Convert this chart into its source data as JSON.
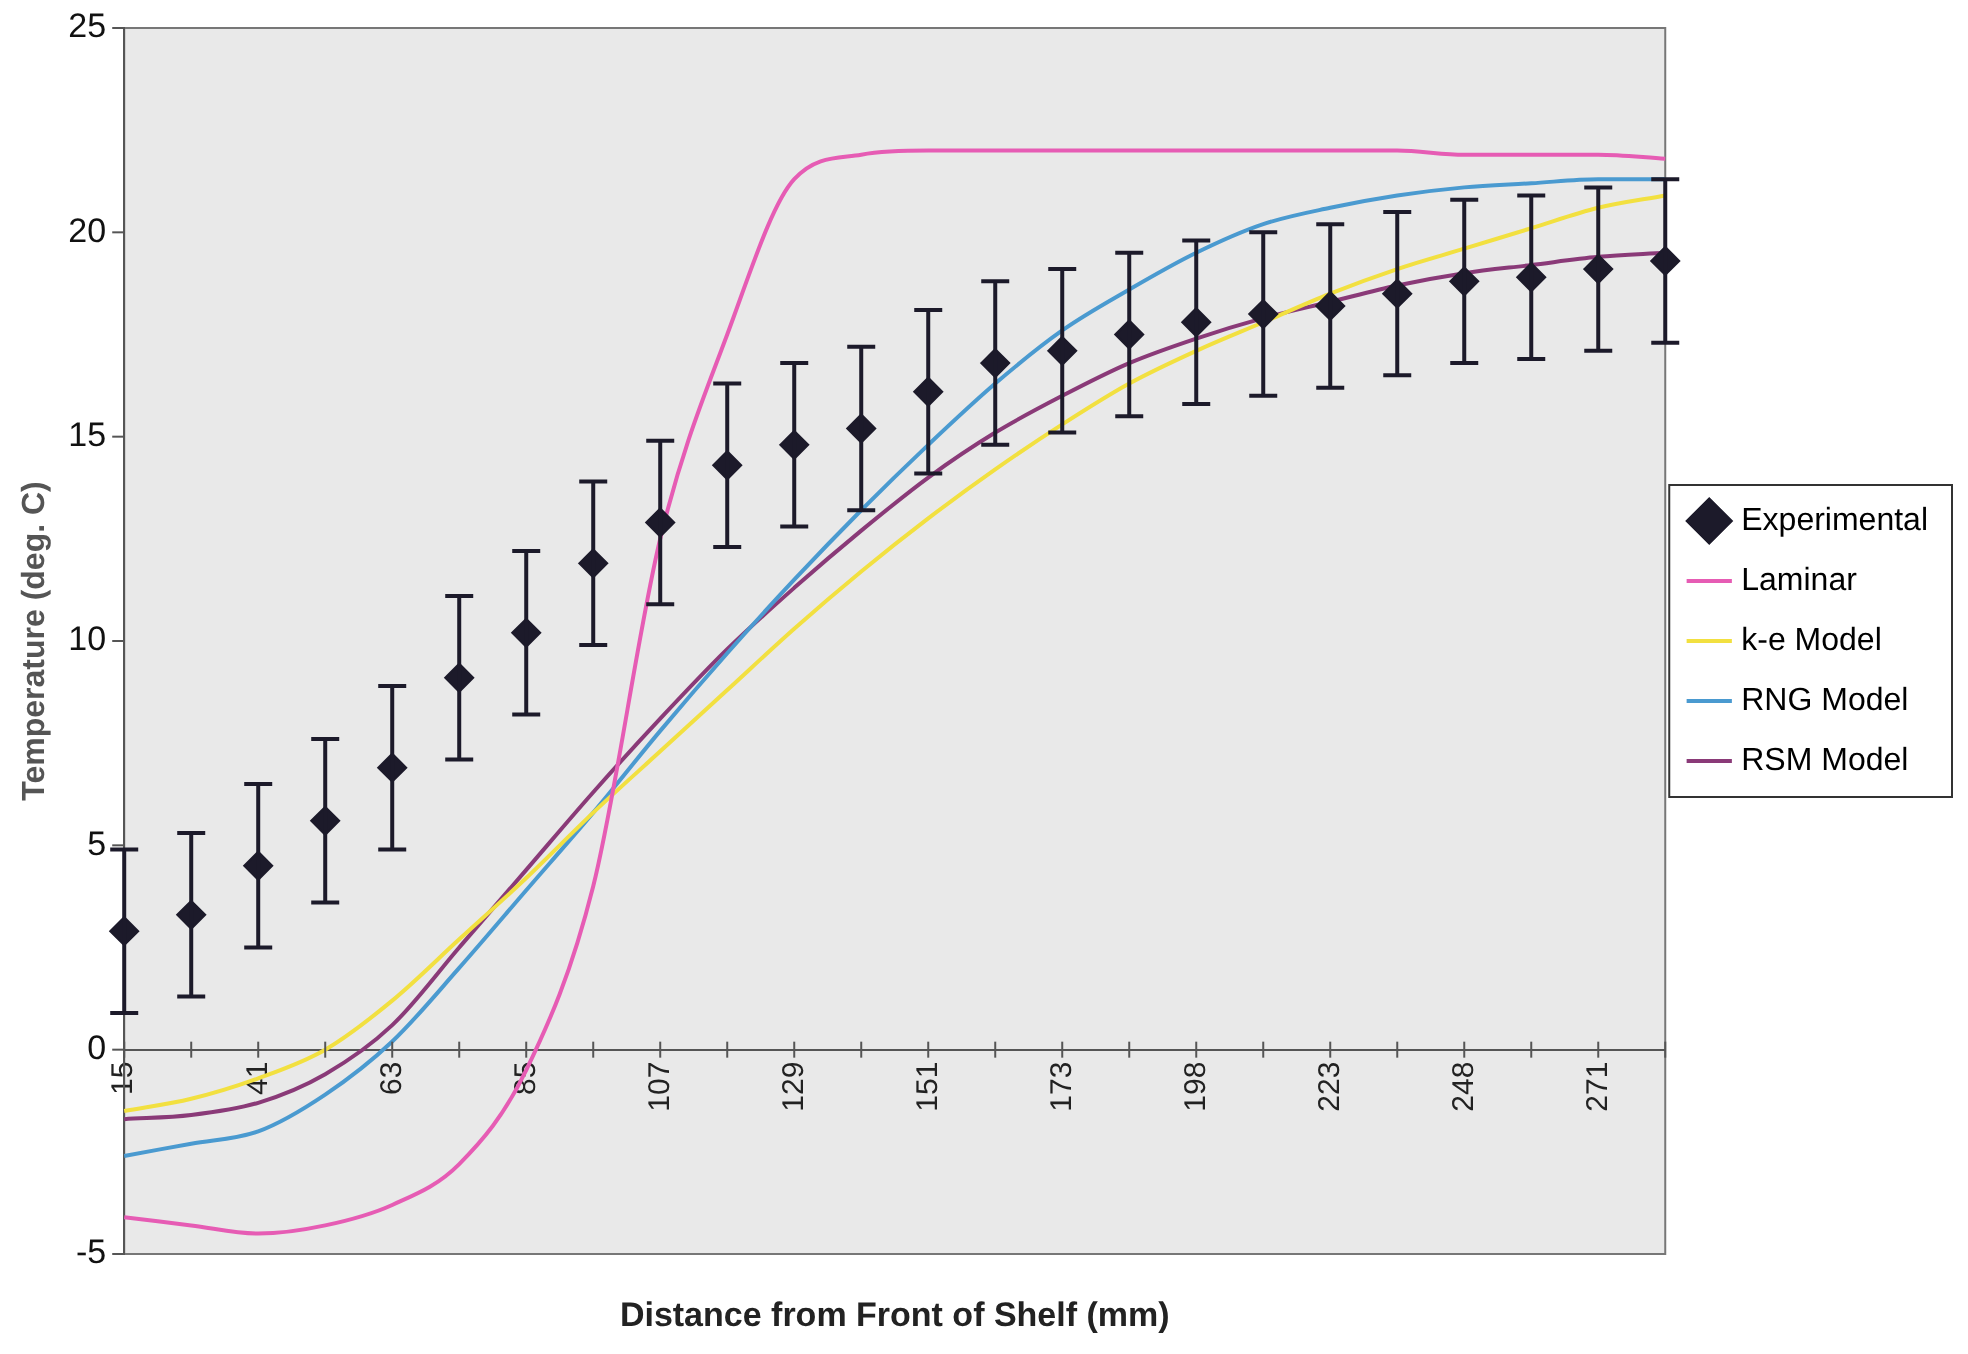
{
  "chart_data": {
    "type": "line",
    "xlabel": "Distance from Front of Shelf (mm)",
    "ylabel": "Temperature (deg. C)",
    "categories": [
      "15",
      null,
      "41",
      null,
      "63",
      null,
      "85",
      null,
      "107",
      null,
      "129",
      null,
      "151",
      null,
      "173",
      null,
      "198",
      null,
      "223",
      null,
      "248",
      null,
      "271",
      null
    ],
    "ylim": [
      -5,
      25
    ],
    "yticks": [
      -5,
      0,
      5,
      10,
      15,
      20,
      25
    ],
    "grid": false,
    "legend": "right",
    "series": [
      {
        "name": "Experimental",
        "type": "scatter",
        "marker": "diamond",
        "color": "#1c1a2a",
        "values": [
          2.9,
          3.3,
          4.5,
          5.6,
          6.9,
          9.1,
          10.2,
          11.9,
          12.9,
          14.3,
          14.8,
          15.2,
          16.1,
          16.8,
          17.1,
          17.5,
          17.8,
          18.0,
          18.2,
          18.5,
          18.8,
          18.9,
          19.1,
          19.3
        ],
        "errors": [
          2,
          2,
          2,
          2,
          2,
          2,
          2,
          2,
          2,
          2,
          2,
          2,
          2,
          2,
          2,
          2,
          2,
          2,
          2,
          2,
          2,
          2,
          2,
          2
        ]
      },
      {
        "name": "Laminar",
        "type": "line",
        "marker": "none",
        "color": "#e65cb4",
        "values": [
          -4.1,
          -4.3,
          -4.5,
          -4.3,
          -3.8,
          -2.8,
          -0.5,
          4.0,
          12.5,
          17.5,
          21.3,
          21.9,
          22.0,
          22.0,
          22.0,
          22.0,
          22.0,
          22.0,
          22.0,
          22.0,
          21.9,
          21.9,
          21.9,
          21.8
        ]
      },
      {
        "name": "k-e Model",
        "type": "line",
        "marker": "none",
        "color": "#f2e040",
        "values": [
          -1.5,
          -1.2,
          -0.7,
          0.0,
          1.2,
          2.7,
          4.2,
          5.8,
          7.3,
          8.8,
          10.3,
          11.7,
          13.0,
          14.2,
          15.3,
          16.3,
          17.1,
          17.8,
          18.5,
          19.1,
          19.6,
          20.1,
          20.6,
          20.9
        ]
      },
      {
        "name": "RNG Model",
        "type": "line",
        "marker": "none",
        "color": "#4a9ad0",
        "values": [
          -2.6,
          -2.3,
          -2.0,
          -1.1,
          0.2,
          2.0,
          3.9,
          5.8,
          7.8,
          9.7,
          11.5,
          13.2,
          14.8,
          16.3,
          17.6,
          18.6,
          19.5,
          20.2,
          20.6,
          20.9,
          21.1,
          21.2,
          21.3,
          21.3
        ]
      },
      {
        "name": "RSM Model",
        "type": "line",
        "marker": "none",
        "color": "#8a3a78",
        "values": [
          -1.7,
          -1.6,
          -1.3,
          -0.6,
          0.6,
          2.5,
          4.4,
          6.3,
          8.1,
          9.8,
          11.3,
          12.7,
          14.0,
          15.1,
          16.0,
          16.8,
          17.4,
          17.9,
          18.3,
          18.7,
          19.0,
          19.2,
          19.4,
          19.5
        ]
      }
    ]
  }
}
